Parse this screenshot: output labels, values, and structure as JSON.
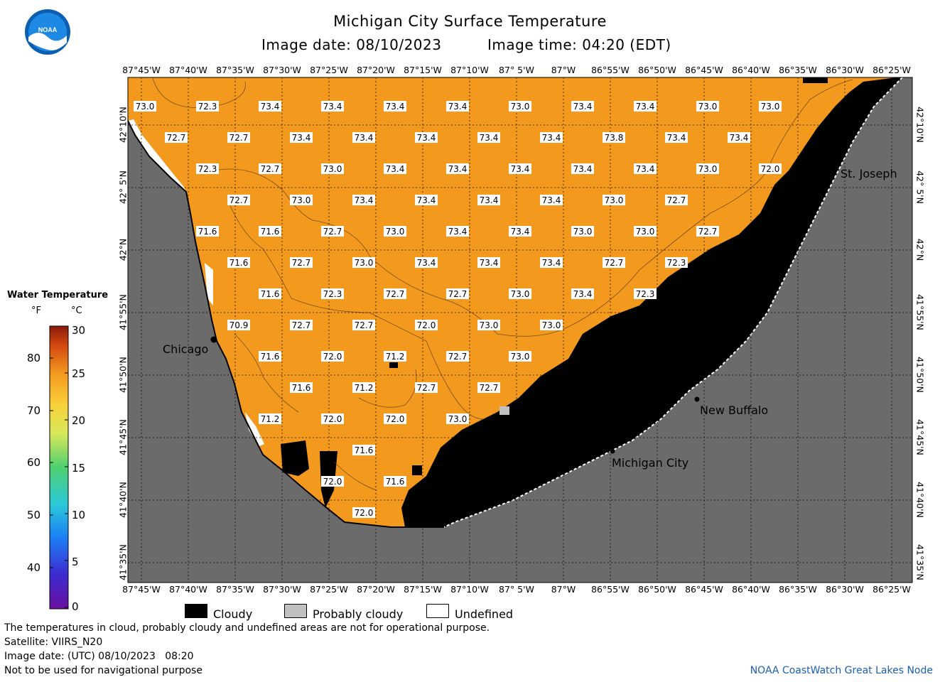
{
  "header": {
    "title": "Michigan City Surface Temperature",
    "image_date": "Image date: 08/10/2023",
    "image_time": "Image time: 04:20 (EDT)"
  },
  "logo": {
    "text": "NOAA"
  },
  "axes": {
    "lon_labels": [
      "87°45'W",
      "87°40'W",
      "87°35'W",
      "87°30'W",
      "87°25'W",
      "87°20'W",
      "87°15'W",
      "87°10'W",
      "87° 5'W",
      "87°W",
      "86°55'W",
      "86°50'W",
      "86°45'W",
      "86°40'W",
      "86°35'W",
      "86°30'W",
      "86°25'W"
    ],
    "lat_labels": [
      "42°10'N",
      "42° 5'N",
      "42°N",
      "41°55'N",
      "41°50'N",
      "41°45'N",
      "41°40'N",
      "41°35'N"
    ]
  },
  "places": {
    "chicago": "Chicago",
    "st_joseph": "St. Joseph",
    "new_buffalo": "New Buffalo",
    "michigan_city": "Michigan City"
  },
  "colorbar": {
    "title": "Water Temperature",
    "unit_f": "°F",
    "unit_c": "°C",
    "f_ticks": [
      "80",
      "70",
      "60",
      "50",
      "40"
    ],
    "c_ticks": [
      "30",
      "25",
      "20",
      "15",
      "10",
      "5",
      "0"
    ]
  },
  "legend": {
    "cloudy": "Cloudy",
    "probably_cloudy": "Probably cloudy",
    "undefined": "Undefined"
  },
  "footer": {
    "note": "The temperatures in cloud, probably cloudy and undefined areas are not for operational purpose.",
    "satellite": "Satellite: VIIRS_N20",
    "utc_date": "Image date: (UTC) 08/10/2023   08:20",
    "nav": "Not to be used for navigational purpose",
    "credit": "NOAA CoastWatch Great Lakes Node"
  },
  "colors": {
    "water": "#f39a1e",
    "land": "#6b6b6b",
    "cloud": "#000000",
    "probably_cloudy": "#c0c0c0",
    "undefined": "#ffffff"
  },
  "temps_f": {
    "rows": [
      [
        "73.0",
        "72.3",
        "73.4",
        "73.4",
        "73.4",
        "73.4",
        "73.0",
        "73.4",
        "73.4",
        "73.0",
        "73.0"
      ],
      [
        "72.7",
        "72.7",
        "73.4",
        "73.4",
        "73.4",
        "73.4",
        "73.4",
        "73.8",
        "73.4",
        "73.4"
      ],
      [
        "72.3",
        "72.7",
        "73.0",
        "73.4",
        "73.4",
        "73.4",
        "73.4",
        "73.4",
        "73.0",
        "72.0"
      ],
      [
        "72.7",
        "73.0",
        "73.4",
        "73.4",
        "73.4",
        "73.4",
        "73.0",
        "72.7"
      ],
      [
        "71.6",
        "71.6",
        "72.7",
        "73.0",
        "73.4",
        "73.4",
        "73.0",
        "73.0",
        "72.7"
      ],
      [
        "71.6",
        "72.7",
        "73.0",
        "73.4",
        "73.4",
        "73.4",
        "72.7",
        "72.3"
      ],
      [
        "71.6",
        "72.3",
        "72.7",
        "72.7",
        "73.0",
        "73.4",
        "72.3"
      ],
      [
        "70.9",
        "72.7",
        "72.7",
        "72.0",
        "73.0",
        "73.0"
      ],
      [
        "71.6",
        "72.0",
        "71.2",
        "72.7",
        "73.0"
      ],
      [
        "71.6",
        "71.2",
        "72.7",
        "72.7"
      ],
      [
        "71.2",
        "72.0",
        "72.0",
        "73.0"
      ],
      [
        "71.6"
      ],
      [
        "72.0",
        "71.6"
      ],
      [
        "72.0"
      ]
    ]
  }
}
